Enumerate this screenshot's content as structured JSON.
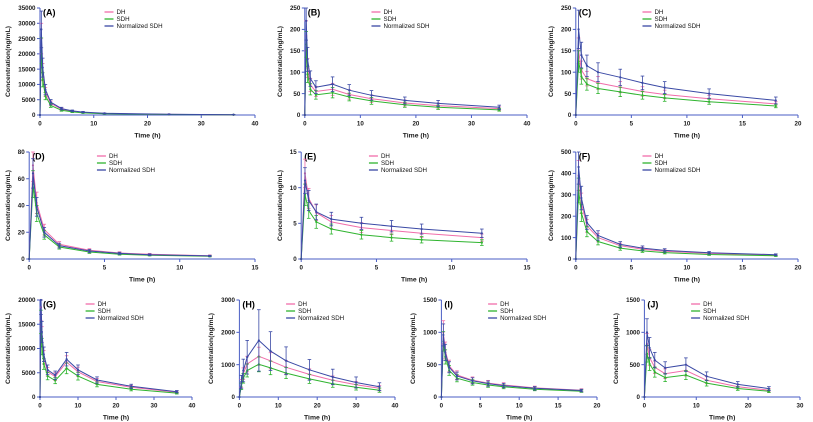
{
  "figure": {
    "background": "#ffffff",
    "description_labels": [
      "(A)",
      "(B)",
      "(C)",
      "(D)",
      "(E)",
      "(F)",
      "(G)",
      "(H)",
      "(I)",
      "(J)"
    ]
  },
  "colors": {
    "axis": "#4a5ec4",
    "text": "#1a1a1a",
    "series": {
      "DH": "#f06daa",
      "SDH": "#2fb42f",
      "Normalized SDH": "#3a49a5"
    }
  },
  "chart_data": [
    {
      "id": "A",
      "type": "line",
      "label": "(A)",
      "xlabel": "Time (h)",
      "ylabel": "Concentration(ng/mL)",
      "xlim": [
        0,
        40
      ],
      "xticks": [
        0,
        10,
        20,
        30,
        40
      ],
      "ylim": [
        0,
        35000
      ],
      "yticks": [
        0,
        5000,
        10000,
        15000,
        20000,
        25000,
        30000,
        35000
      ],
      "x": [
        0,
        0.25,
        0.5,
        1,
        2,
        4,
        6,
        8,
        12,
        24,
        36
      ],
      "series": [
        {
          "name": "DH",
          "values": [
            0,
            25000,
            14000,
            7500,
            3800,
            1900,
            1200,
            850,
            500,
            200,
            100
          ],
          "errors": [
            0,
            5000,
            2800,
            1500,
            800,
            400,
            250,
            180,
            100,
            50,
            30
          ]
        },
        {
          "name": "SDH",
          "values": [
            0,
            21000,
            11500,
            6200,
            3100,
            1550,
            1000,
            700,
            420,
            160,
            80
          ],
          "errors": [
            0,
            4200,
            2300,
            1200,
            620,
            310,
            200,
            140,
            85,
            40,
            25
          ]
        },
        {
          "name": "Normalized SDH",
          "values": [
            0,
            28000,
            15500,
            8300,
            4200,
            2100,
            1350,
            950,
            560,
            220,
            110
          ],
          "errors": [
            0,
            6000,
            3100,
            1700,
            850,
            420,
            270,
            190,
            110,
            55,
            35
          ]
        }
      ]
    },
    {
      "id": "B",
      "type": "line",
      "label": "(B)",
      "xlabel": "Time (h)",
      "ylabel": "Concentration(ng/mL)",
      "xlim": [
        0,
        40
      ],
      "xticks": [
        0,
        10,
        20,
        30,
        40
      ],
      "ylim": [
        0,
        250
      ],
      "yticks": [
        0,
        50,
        100,
        150,
        200,
        250
      ],
      "x": [
        0,
        0.25,
        0.5,
        1,
        2,
        5,
        8,
        12,
        18,
        24,
        35
      ],
      "series": [
        {
          "name": "DH",
          "values": [
            0,
            185,
            110,
            70,
            55,
            60,
            48,
            38,
            28,
            22,
            15
          ],
          "errors": [
            0,
            35,
            22,
            15,
            12,
            14,
            11,
            9,
            7,
            6,
            4
          ]
        },
        {
          "name": "SDH",
          "values": [
            0,
            165,
            95,
            60,
            47,
            52,
            42,
            33,
            24,
            18,
            12
          ],
          "errors": [
            0,
            30,
            19,
            13,
            10,
            12,
            9,
            8,
            6,
            5,
            3
          ]
        },
        {
          "name": "Normalized SDH",
          "values": [
            0,
            220,
            130,
            85,
            65,
            72,
            58,
            46,
            34,
            27,
            18
          ],
          "errors": [
            0,
            45,
            28,
            18,
            15,
            17,
            13,
            11,
            8,
            7,
            5
          ]
        }
      ]
    },
    {
      "id": "C",
      "type": "line",
      "label": "(C)",
      "xlabel": "Time (h)",
      "ylabel": "Concentration(ng/mL)",
      "xlim": [
        0,
        20
      ],
      "xticks": [
        0,
        5,
        10,
        15,
        20
      ],
      "ylim": [
        0,
        250
      ],
      "yticks": [
        0,
        50,
        100,
        150,
        200,
        250
      ],
      "x": [
        0,
        0.25,
        0.5,
        1,
        2,
        4,
        6,
        8,
        12,
        18
      ],
      "series": [
        {
          "name": "DH",
          "values": [
            0,
            150,
            105,
            85,
            75,
            65,
            55,
            48,
            38,
            26
          ],
          "errors": [
            0,
            30,
            21,
            17,
            15,
            13,
            11,
            10,
            8,
            5
          ]
        },
        {
          "name": "SDH",
          "values": [
            0,
            125,
            90,
            72,
            62,
            54,
            46,
            40,
            31,
            21
          ],
          "errors": [
            0,
            25,
            18,
            14,
            12,
            11,
            9,
            8,
            6,
            4
          ]
        },
        {
          "name": "Normalized SDH",
          "values": [
            0,
            200,
            140,
            115,
            100,
            88,
            75,
            64,
            50,
            34
          ],
          "errors": [
            0,
            45,
            30,
            25,
            22,
            19,
            16,
            14,
            11,
            8
          ]
        }
      ]
    },
    {
      "id": "D",
      "type": "line",
      "label": "(D)",
      "xlabel": "Time (h)",
      "ylabel": "Concentration(ng/mL)",
      "xlim": [
        0,
        15
      ],
      "xticks": [
        0,
        5,
        10,
        15
      ],
      "ylim": [
        0,
        80
      ],
      "yticks": [
        0,
        20,
        40,
        60,
        80
      ],
      "x": [
        0,
        0.25,
        0.5,
        1,
        2,
        4,
        6,
        8,
        12
      ],
      "series": [
        {
          "name": "DH",
          "values": [
            0,
            70,
            42,
            22,
            11,
            6.5,
            4.5,
            3.5,
            2.5
          ],
          "errors": [
            0,
            12,
            8,
            4,
            2,
            1.2,
            0.9,
            0.7,
            0.5
          ]
        },
        {
          "name": "SDH",
          "values": [
            0,
            56,
            34,
            18,
            9,
            5.2,
            3.6,
            2.8,
            2
          ],
          "errors": [
            0,
            10,
            6,
            3.2,
            1.6,
            1,
            0.7,
            0.5,
            0.4
          ]
        },
        {
          "name": "Normalized SDH",
          "values": [
            0,
            64,
            39,
            20,
            10,
            6,
            4.2,
            3.2,
            2.3
          ],
          "errors": [
            0,
            11,
            7,
            3.6,
            1.8,
            1.1,
            0.8,
            0.6,
            0.45
          ]
        }
      ]
    },
    {
      "id": "E",
      "type": "line",
      "label": "(E)",
      "xlabel": "Time (h)",
      "ylabel": "Concentration(ng/mL)",
      "xlim": [
        0,
        15
      ],
      "xticks": [
        0,
        5,
        10,
        15
      ],
      "ylim": [
        0,
        15
      ],
      "yticks": [
        0,
        5,
        10,
        15
      ],
      "x": [
        0,
        0.25,
        0.5,
        1,
        2,
        4,
        6,
        8,
        12
      ],
      "series": [
        {
          "name": "DH",
          "values": [
            0,
            12,
            8.5,
            6.5,
            5.2,
            4.4,
            4,
            3.6,
            3
          ],
          "errors": [
            0,
            2,
            1.4,
            1.1,
            0.9,
            0.7,
            0.6,
            0.6,
            0.5
          ]
        },
        {
          "name": "SDH",
          "values": [
            0,
            9,
            6.8,
            5.2,
            4.2,
            3.4,
            3,
            2.7,
            2.3
          ],
          "errors": [
            0,
            1.5,
            1.1,
            0.9,
            0.7,
            0.6,
            0.5,
            0.45,
            0.4
          ]
        },
        {
          "name": "Normalized SDH",
          "values": [
            0,
            11,
            8.2,
            6.6,
            5.6,
            5,
            4.6,
            4.2,
            3.6
          ],
          "errors": [
            0,
            1.8,
            1.4,
            1.1,
            0.95,
            0.85,
            0.8,
            0.7,
            0.6
          ]
        }
      ]
    },
    {
      "id": "F",
      "type": "line",
      "label": "(F)",
      "xlabel": "Time (h)",
      "ylabel": "Concentration(ng/mL)",
      "xlim": [
        0,
        20
      ],
      "xticks": [
        0,
        5,
        10,
        15,
        20
      ],
      "ylim": [
        0,
        500
      ],
      "yticks": [
        0,
        100,
        200,
        300,
        400,
        500
      ],
      "x": [
        0,
        0.25,
        0.5,
        1,
        2,
        4,
        6,
        8,
        12,
        18
      ],
      "series": [
        {
          "name": "DH",
          "values": [
            0,
            390,
            260,
            155,
            100,
            62,
            46,
            36,
            26,
            18
          ],
          "errors": [
            0,
            70,
            48,
            30,
            20,
            12,
            9,
            7,
            5,
            4
          ]
        },
        {
          "name": "SDH",
          "values": [
            0,
            320,
            215,
            128,
            82,
            51,
            38,
            30,
            21,
            15
          ],
          "errors": [
            0,
            58,
            40,
            24,
            16,
            10,
            7,
            6,
            4,
            3
          ]
        },
        {
          "name": "Normalized SDH",
          "values": [
            0,
            430,
            285,
            170,
            110,
            68,
            51,
            40,
            29,
            20
          ],
          "errors": [
            0,
            80,
            55,
            33,
            22,
            13,
            10,
            8,
            6,
            4
          ]
        }
      ]
    },
    {
      "id": "G",
      "type": "line",
      "label": "(G)",
      "xlabel": "Time (h)",
      "ylabel": "Concentration(ng/mL)",
      "xlim": [
        0,
        40
      ],
      "xticks": [
        0,
        10,
        20,
        30,
        40
      ],
      "ylim": [
        0,
        20000
      ],
      "yticks": [
        0,
        5000,
        10000,
        15000,
        20000
      ],
      "x": [
        0,
        0.25,
        0.5,
        1,
        2,
        4,
        7,
        10,
        15,
        24,
        36
      ],
      "series": [
        {
          "name": "DH",
          "values": [
            0,
            18500,
            12500,
            8200,
            5200,
            4200,
            7200,
            5200,
            3200,
            2000,
            1000
          ],
          "errors": [
            0,
            2800,
            2000,
            1400,
            900,
            800,
            1300,
            950,
            600,
            400,
            220
          ]
        },
        {
          "name": "SDH",
          "values": [
            0,
            15500,
            10400,
            6800,
            4300,
            3400,
            5900,
            4300,
            2600,
            1600,
            800
          ],
          "errors": [
            0,
            2400,
            1700,
            1100,
            750,
            650,
            1100,
            800,
            500,
            330,
            180
          ]
        },
        {
          "name": "Normalized SDH",
          "values": [
            0,
            20000,
            13400,
            8800,
            5600,
            4500,
            7800,
            5600,
            3500,
            2200,
            1100
          ],
          "errors": [
            0,
            3000,
            2200,
            1500,
            1000,
            850,
            1400,
            1000,
            650,
            430,
            240
          ]
        }
      ]
    },
    {
      "id": "H",
      "type": "line",
      "label": "(H)",
      "xlabel": "Time (h)",
      "ylabel": "Concentration(ng/mL)",
      "xlim": [
        0,
        40
      ],
      "xticks": [
        0,
        10,
        20,
        30,
        40
      ],
      "ylim": [
        0,
        3000
      ],
      "yticks": [
        0,
        1000,
        2000,
        3000
      ],
      "x": [
        0,
        0.5,
        1,
        2,
        5,
        8,
        12,
        18,
        24,
        30,
        36
      ],
      "series": [
        {
          "name": "DH",
          "values": [
            0,
            420,
            720,
            1020,
            1260,
            1120,
            920,
            700,
            520,
            380,
            270
          ],
          "errors": [
            0,
            120,
            180,
            240,
            280,
            250,
            210,
            170,
            130,
            100,
            80
          ]
        },
        {
          "name": "SDH",
          "values": [
            0,
            330,
            580,
            820,
            1010,
            900,
            740,
            560,
            410,
            300,
            210
          ],
          "errors": [
            0,
            100,
            150,
            200,
            230,
            210,
            170,
            140,
            110,
            85,
            65
          ]
        },
        {
          "name": "Normalized SDH",
          "values": [
            0,
            470,
            820,
            1230,
            1750,
            1420,
            1120,
            840,
            620,
            450,
            320
          ],
          "errors": [
            0,
            200,
            350,
            520,
            950,
            600,
            430,
            320,
            240,
            170,
            120
          ]
        }
      ]
    },
    {
      "id": "I",
      "type": "line",
      "label": "(I)",
      "xlabel": "Time (h)",
      "ylabel": "Concentration(ng/mL)",
      "xlim": [
        0,
        20
      ],
      "xticks": [
        0,
        5,
        10,
        15,
        20
      ],
      "ylim": [
        0,
        1500
      ],
      "yticks": [
        0,
        500,
        1000,
        1500
      ],
      "x": [
        0,
        0.25,
        0.5,
        1,
        2,
        4,
        6,
        8,
        12,
        18
      ],
      "series": [
        {
          "name": "DH",
          "values": [
            0,
            1000,
            720,
            480,
            340,
            260,
            215,
            185,
            140,
            105
          ],
          "errors": [
            0,
            180,
            130,
            90,
            65,
            50,
            42,
            36,
            28,
            22
          ]
        },
        {
          "name": "SDH",
          "values": [
            0,
            860,
            620,
            410,
            290,
            225,
            185,
            158,
            120,
            90
          ],
          "errors": [
            0,
            150,
            110,
            75,
            55,
            42,
            35,
            30,
            23,
            18
          ]
        },
        {
          "name": "Normalized SDH",
          "values": [
            0,
            960,
            690,
            460,
            325,
            250,
            207,
            177,
            134,
            100
          ],
          "errors": [
            0,
            170,
            125,
            85,
            60,
            47,
            40,
            34,
            26,
            20
          ]
        }
      ]
    },
    {
      "id": "J",
      "type": "line",
      "label": "(J)",
      "xlabel": "Time (h)",
      "ylabel": "Concentration(ng/mL)",
      "xlim": [
        0,
        30
      ],
      "xticks": [
        0,
        10,
        20,
        30
      ],
      "ylim": [
        0,
        1500
      ],
      "yticks": [
        0,
        500,
        1000,
        1500
      ],
      "x": [
        0,
        0.5,
        1,
        2,
        4,
        8,
        12,
        18,
        24
      ],
      "series": [
        {
          "name": "DH",
          "values": [
            0,
            820,
            610,
            460,
            360,
            410,
            260,
            160,
            105
          ],
          "errors": [
            0,
            160,
            120,
            95,
            75,
            85,
            55,
            36,
            25
          ]
        },
        {
          "name": "SDH",
          "values": [
            0,
            670,
            510,
            385,
            300,
            340,
            215,
            132,
            88
          ],
          "errors": [
            0,
            130,
            100,
            78,
            62,
            70,
            45,
            29,
            20
          ]
        },
        {
          "name": "Normalized SDH",
          "values": [
            0,
            1000,
            760,
            570,
            450,
            500,
            320,
            195,
            130
          ],
          "errors": [
            0,
            210,
            160,
            120,
            95,
            105,
            68,
            43,
            30
          ]
        }
      ]
    }
  ]
}
